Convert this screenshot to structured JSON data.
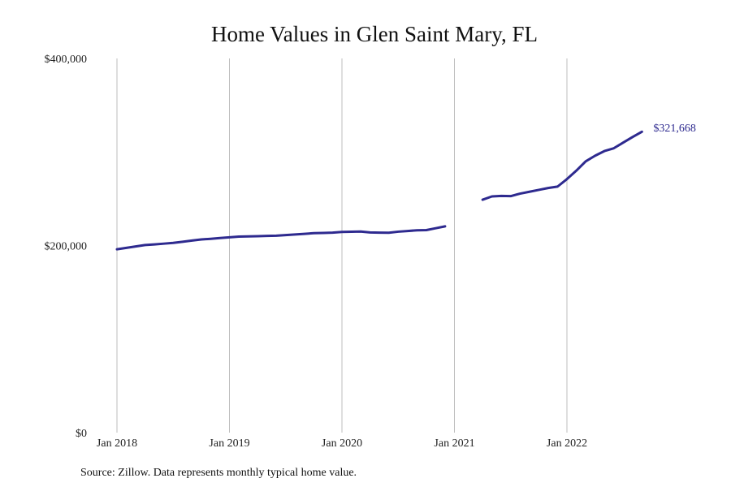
{
  "chart_data": {
    "type": "line",
    "title": "Home Values in Glen Saint Mary, FL",
    "xlabel": "",
    "ylabel": "",
    "ylim": [
      0,
      400000
    ],
    "x_ticks": [
      "Jan 2018",
      "Jan 2019",
      "Jan 2020",
      "Jan 2021",
      "Jan 2022"
    ],
    "y_ticks": [
      "$0",
      "$200,000",
      "$400,000"
    ],
    "grid": {
      "vertical": true,
      "horizontal": false
    },
    "line_color": "#2e2a8f",
    "end_label": "$321,668",
    "series": [
      {
        "segments": [
          [
            [
              "2018-01",
              196000
            ],
            [
              "2018-02",
              197500
            ],
            [
              "2018-03",
              199000
            ],
            [
              "2018-04",
              200500
            ],
            [
              "2018-05",
              201200
            ],
            [
              "2018-06",
              202000
            ],
            [
              "2018-07",
              202800
            ],
            [
              "2018-08",
              204000
            ],
            [
              "2018-09",
              205300
            ],
            [
              "2018-10",
              206500
            ],
            [
              "2018-11",
              207200
            ],
            [
              "2018-12",
              208000
            ],
            [
              "2019-01",
              208800
            ],
            [
              "2019-02",
              209500
            ],
            [
              "2019-03",
              209800
            ],
            [
              "2019-04",
              210000
            ],
            [
              "2019-05",
              210300
            ],
            [
              "2019-06",
              210500
            ],
            [
              "2019-07",
              211200
            ],
            [
              "2019-08",
              211800
            ],
            [
              "2019-09",
              212500
            ],
            [
              "2019-10",
              213200
            ],
            [
              "2019-11",
              213500
            ],
            [
              "2019-12",
              213800
            ],
            [
              "2020-01",
              214500
            ],
            [
              "2020-02",
              214700
            ],
            [
              "2020-03",
              215000
            ],
            [
              "2020-04",
              214000
            ],
            [
              "2020-05",
              213800
            ],
            [
              "2020-06",
              213700
            ],
            [
              "2020-07",
              214800
            ],
            [
              "2020-08",
              215500
            ],
            [
              "2020-09",
              216300
            ],
            [
              "2020-10",
              216500
            ],
            [
              "2020-11",
              218500
            ],
            [
              "2020-12",
              220500
            ]
          ],
          [
            [
              "2021-04",
              249000
            ],
            [
              "2021-05",
              252500
            ],
            [
              "2021-06",
              253000
            ],
            [
              "2021-07",
              252800
            ],
            [
              "2021-08",
              255500
            ],
            [
              "2021-09",
              257500
            ],
            [
              "2021-10",
              259500
            ],
            [
              "2021-11",
              261500
            ],
            [
              "2021-12",
              263000
            ],
            [
              "2022-01",
              271000
            ],
            [
              "2022-02",
              280000
            ],
            [
              "2022-03",
              290000
            ],
            [
              "2022-04",
              296000
            ],
            [
              "2022-05",
              301000
            ],
            [
              "2022-06",
              304000
            ],
            [
              "2022-07",
              310000
            ],
            [
              "2022-08",
              316000
            ],
            [
              "2022-09",
              321668
            ]
          ]
        ]
      }
    ]
  },
  "footer": {
    "source": "Source: Zillow. Data represents monthly typical home value."
  }
}
